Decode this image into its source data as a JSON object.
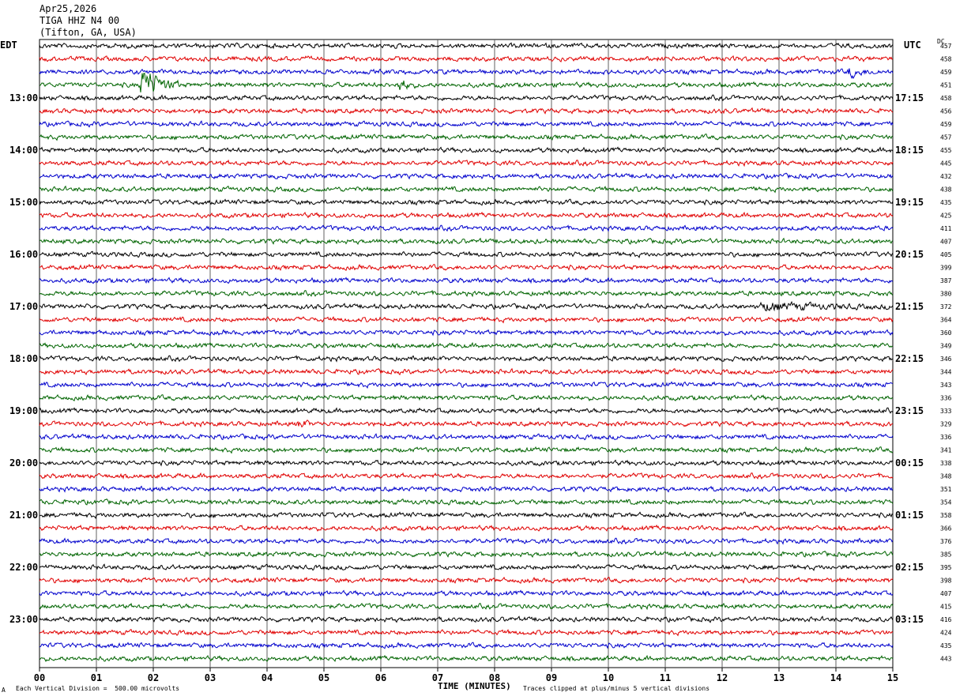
{
  "header": {
    "date": "Apr25,2026",
    "station": "TIGA HHZ N4 00",
    "location": "(Tifton, GA, USA)"
  },
  "left_zone_label": "EDT",
  "right_zone_label": "UTC",
  "dc_label": "DC",
  "footer": {
    "scale_note": "Each Vertical Division =  500.00 microvolts",
    "clip_note": "Traces clipped at plus/minus 5 vertical divisions",
    "mark": "A"
  },
  "chart_data": {
    "type": "line",
    "title": "TIGA HHZ N4 00",
    "xlabel": "TIME (MINUTES)",
    "xlim": [
      0,
      15
    ],
    "x_ticks": [
      "00",
      "01",
      "02",
      "03",
      "04",
      "05",
      "06",
      "07",
      "08",
      "09",
      "10",
      "11",
      "12",
      "13",
      "14",
      "15"
    ],
    "trace_colors": [
      "#000000",
      "#e00000",
      "#0000cc",
      "#006400"
    ],
    "left_time_labels": [
      {
        "row": 4,
        "label": "13:00"
      },
      {
        "row": 8,
        "label": "14:00"
      },
      {
        "row": 12,
        "label": "15:00"
      },
      {
        "row": 16,
        "label": "16:00"
      },
      {
        "row": 20,
        "label": "17:00"
      },
      {
        "row": 24,
        "label": "18:00"
      },
      {
        "row": 28,
        "label": "19:00"
      },
      {
        "row": 32,
        "label": "20:00"
      },
      {
        "row": 36,
        "label": "21:00"
      },
      {
        "row": 40,
        "label": "22:00"
      },
      {
        "row": 44,
        "label": "23:00"
      }
    ],
    "right_time_labels": [
      {
        "row": 4,
        "label": "17:15"
      },
      {
        "row": 8,
        "label": "18:15"
      },
      {
        "row": 12,
        "label": "19:15"
      },
      {
        "row": 16,
        "label": "20:15"
      },
      {
        "row": 20,
        "label": "21:15"
      },
      {
        "row": 24,
        "label": "22:15"
      },
      {
        "row": 28,
        "label": "23:15"
      },
      {
        "row": 32,
        "label": "00:15"
      },
      {
        "row": 36,
        "label": "01:15"
      },
      {
        "row": 40,
        "label": "02:15"
      },
      {
        "row": 44,
        "label": "03:15"
      }
    ],
    "dc_offsets": [
      457,
      458,
      459,
      451,
      458,
      456,
      459,
      457,
      455,
      445,
      432,
      438,
      435,
      425,
      411,
      407,
      405,
      399,
      387,
      380,
      372,
      364,
      360,
      349,
      346,
      344,
      343,
      336,
      333,
      329,
      336,
      341,
      338,
      348,
      351,
      354,
      358,
      366,
      376,
      385,
      395,
      398,
      407,
      415,
      416,
      424,
      435,
      443
    ],
    "events": [
      {
        "row": 3,
        "minute_start": 1.75,
        "minute_end": 2.5,
        "amplitude": 2.6
      },
      {
        "row": 3,
        "minute_start": 6.3,
        "minute_end": 6.6,
        "amplitude": 1.2
      },
      {
        "row": 29,
        "minute_start": 4.55,
        "minute_end": 4.8,
        "amplitude": 0.9
      },
      {
        "row": 2,
        "minute_start": 14.2,
        "minute_end": 14.8,
        "amplitude": 0.6
      },
      {
        "row": 20,
        "minute_start": 12.6,
        "minute_end": 15.0,
        "amplitude": 0.5
      }
    ]
  }
}
